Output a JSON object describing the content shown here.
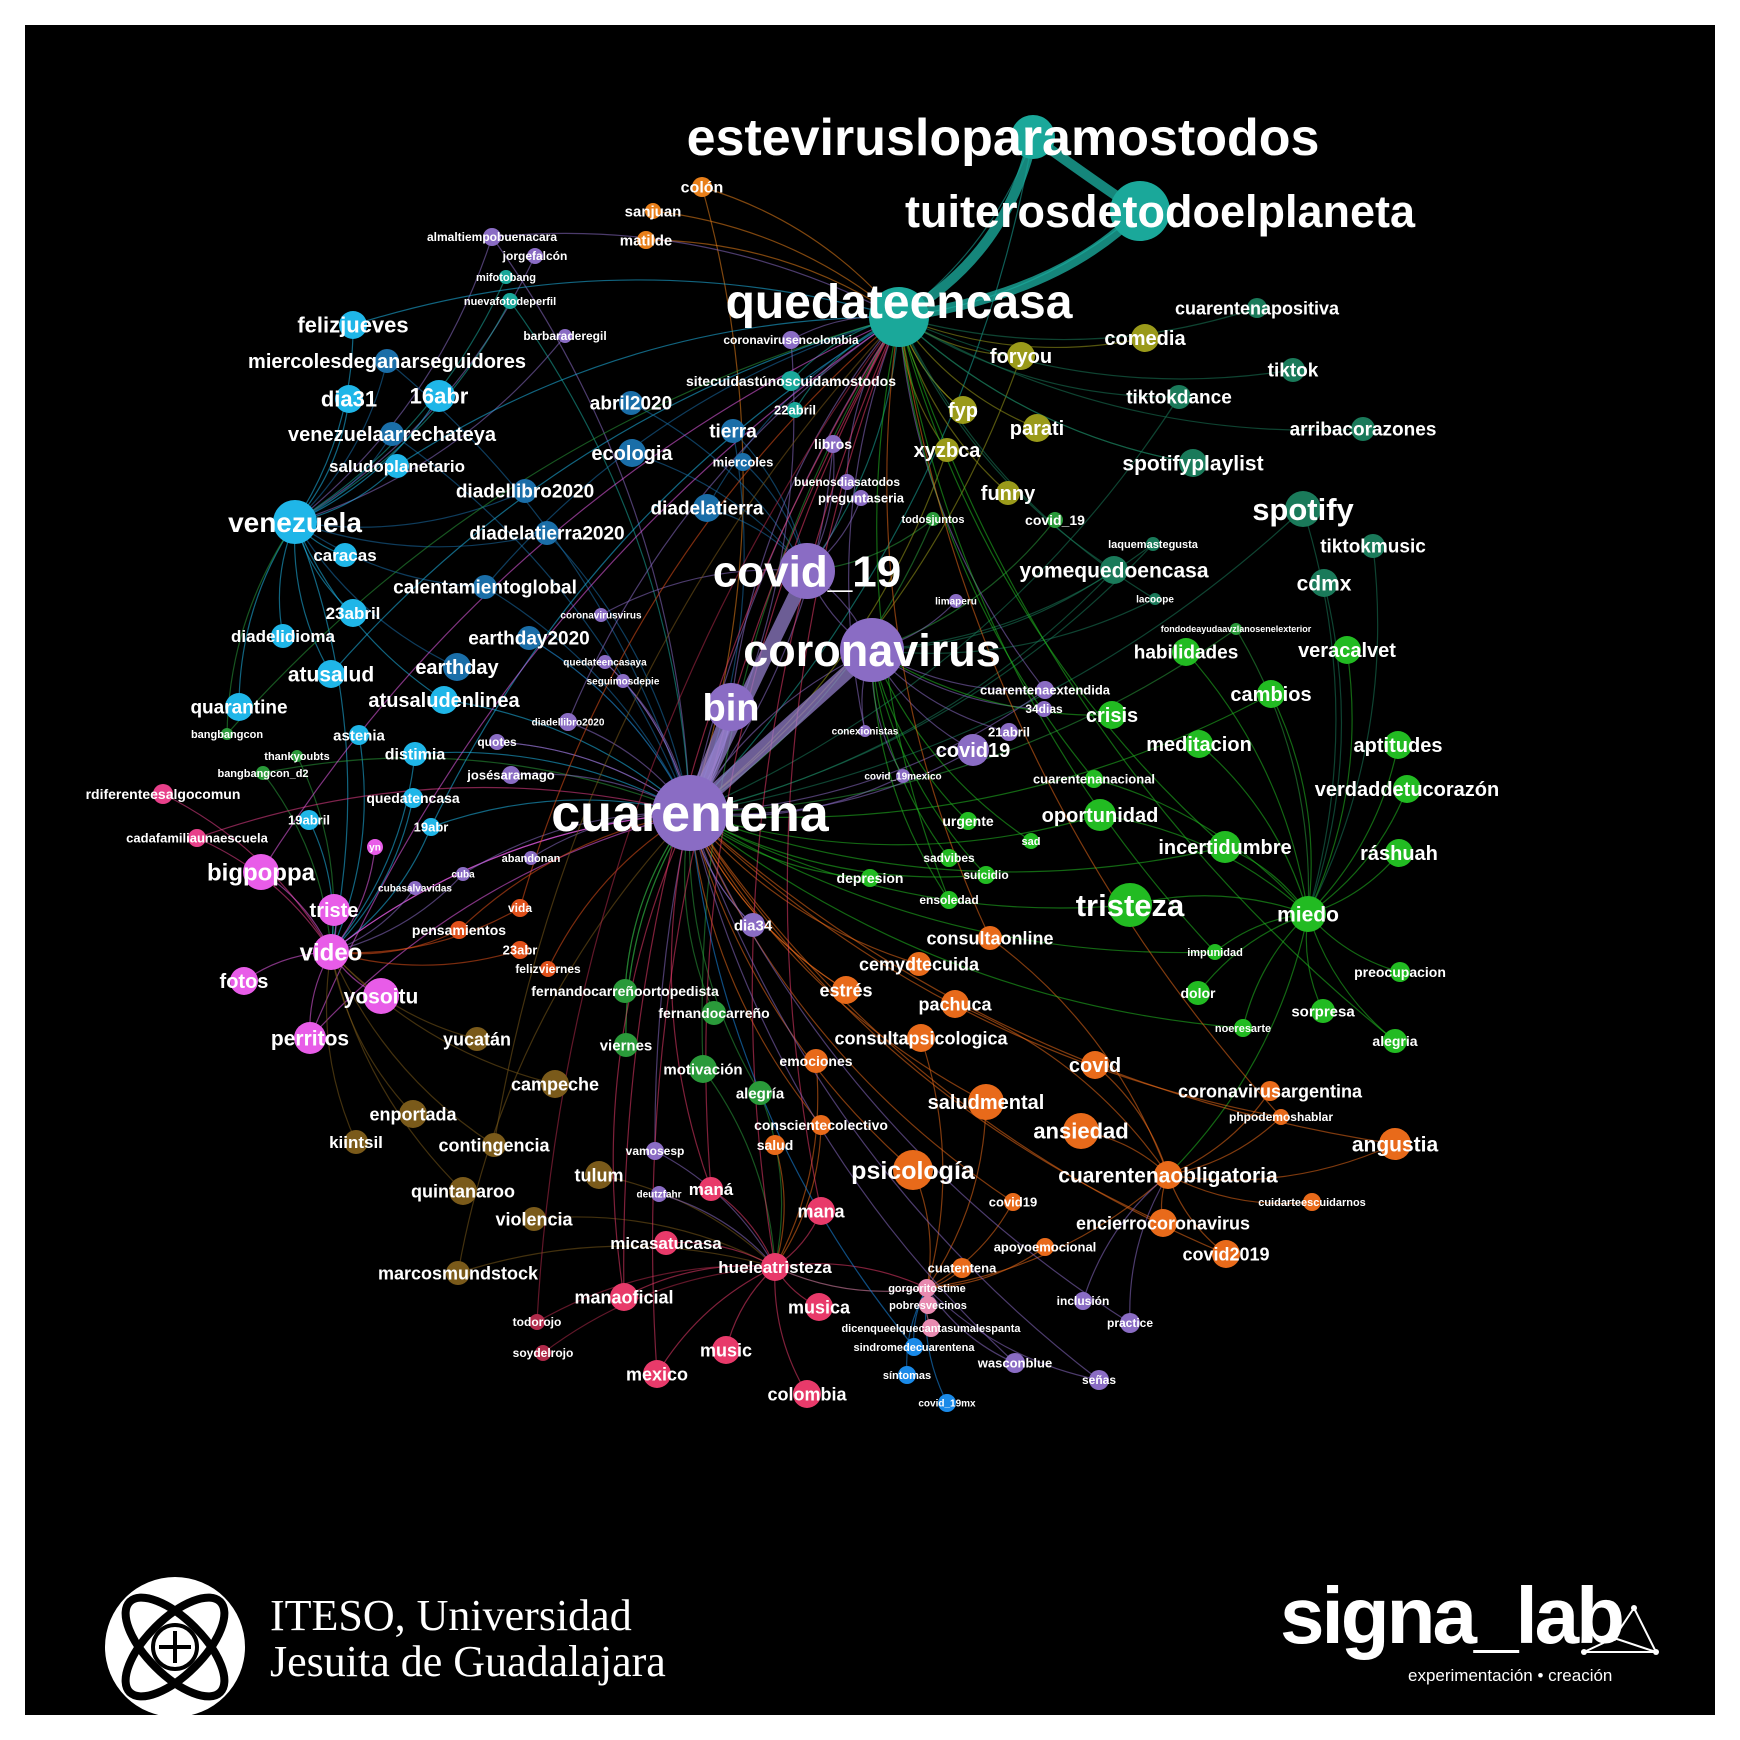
{
  "graph": {
    "nodes": [
      {
        "label": "estevirusloparamostodos",
        "color": "#1aa89a",
        "r": 22
      },
      {
        "label": "tuiterosdetodoelplaneta",
        "color": "#1aa89a",
        "r": 30
      },
      {
        "label": "quedateencasa",
        "color": "#1aa89a",
        "r": 30
      },
      {
        "label": "colón",
        "color": "#e87f1a",
        "r": 10
      },
      {
        "label": "sanjuan",
        "color": "#e87f1a",
        "r": 8
      },
      {
        "label": "matilde",
        "color": "#e87f1a",
        "r": 9
      },
      {
        "label": "almaltiempobuenacara",
        "color": "#8a6cc4",
        "r": 9
      },
      {
        "label": "jorgefalcón",
        "color": "#8a6cc4",
        "r": 8
      },
      {
        "label": "mifotobang",
        "color": "#1aa89a",
        "r": 7
      },
      {
        "label": "nuevafotodeperfil",
        "color": "#1aa89a",
        "r": 8
      },
      {
        "label": "barbaraderegil",
        "color": "#8a6cc4",
        "r": 7
      },
      {
        "label": "felizjueves",
        "color": "#1fb6e8",
        "r": 14
      },
      {
        "label": "miercolesdeganarseguidores",
        "color": "#1a6ea8",
        "r": 12
      },
      {
        "label": "dia31",
        "color": "#1fb6e8",
        "r": 14
      },
      {
        "label": "16abr",
        "color": "#1fb6e8",
        "r": 16
      },
      {
        "label": "venezuelaarrechateya",
        "color": "#1a6ea8",
        "r": 12
      },
      {
        "label": "saludoplanetario",
        "color": "#1fb6e8",
        "r": 12
      },
      {
        "label": "diadellibro2020",
        "color": "#1a6ea8",
        "r": 12
      },
      {
        "label": "diadelatierra2020",
        "color": "#1a6ea8",
        "r": 12
      },
      {
        "label": "venezuela",
        "color": "#1fb6e8",
        "r": 22
      },
      {
        "label": "caracas",
        "color": "#1fb6e8",
        "r": 12
      },
      {
        "label": "calentamientoglobal",
        "color": "#1a6ea8",
        "r": 12
      },
      {
        "label": "23abril",
        "color": "#1fb6e8",
        "r": 14
      },
      {
        "label": "diadelidioma",
        "color": "#1fb6e8",
        "r": 12
      },
      {
        "label": "earthday2020",
        "color": "#1a6ea8",
        "r": 12
      },
      {
        "label": "earthday",
        "color": "#1a6ea8",
        "r": 14
      },
      {
        "label": "atusalud",
        "color": "#1fb6e8",
        "r": 14
      },
      {
        "label": "atusaludenlinea",
        "color": "#1fb6e8",
        "r": 14
      },
      {
        "label": "quarantine",
        "color": "#1fb6e8",
        "r": 14
      },
      {
        "label": "astenia",
        "color": "#1fb6e8",
        "r": 10
      },
      {
        "label": "distimia",
        "color": "#1fb6e8",
        "r": 12
      },
      {
        "label": "bangbangcon",
        "color": "#2a9a3a",
        "r": 6
      },
      {
        "label": "thankyoubts",
        "color": "#2a9a3a",
        "r": 6
      },
      {
        "label": "bangbangcon_d2",
        "color": "#2a9a3a",
        "r": 7
      },
      {
        "label": "quedatencasa",
        "color": "#1fb6e8",
        "r": 10
      },
      {
        "label": "19abril",
        "color": "#1fb6e8",
        "r": 10
      },
      {
        "label": "19abr",
        "color": "#1fb6e8",
        "r": 9
      },
      {
        "label": "abril2020",
        "color": "#1a6ea8",
        "r": 12
      },
      {
        "label": "ecologia",
        "color": "#1a6ea8",
        "r": 14
      },
      {
        "label": "tierra",
        "color": "#1a6ea8",
        "r": 12
      },
      {
        "label": "miercoles",
        "color": "#1a6ea8",
        "r": 9
      },
      {
        "label": "diadelatierra",
        "color": "#1a6ea8",
        "r": 14
      },
      {
        "label": "coronavirusencolombia",
        "color": "#8a6cc4",
        "r": 9
      },
      {
        "label": "sitecuidastúnoscuidamostodos",
        "color": "#1aa89a",
        "r": 10
      },
      {
        "label": "22abril",
        "color": "#1aa89a",
        "r": 8
      },
      {
        "label": "libros",
        "color": "#8a6cc4",
        "r": 9
      },
      {
        "label": "buenosdiasatodos",
        "color": "#8a6cc4",
        "r": 8
      },
      {
        "label": "preguntaseria",
        "color": "#8a6cc4",
        "r": 8
      },
      {
        "label": "todosjuntos",
        "color": "#2a9a3a",
        "r": 7
      },
      {
        "label": "covid_19",
        "color": "#8a6cc4",
        "r": 28
      },
      {
        "label": "coronavirus",
        "color": "#8a6cc4",
        "r": 32
      },
      {
        "label": "bin",
        "color": "#8a6cc4",
        "r": 24
      },
      {
        "label": "cuarentena",
        "color": "#8a6cc4",
        "r": 38
      },
      {
        "label": "coronavirusvirus",
        "color": "#8a6cc4",
        "r": 7
      },
      {
        "label": "quedateencasaya",
        "color": "#8a6cc4",
        "r": 7
      },
      {
        "label": "seguimosdepie",
        "color": "#8a6cc4",
        "r": 7
      },
      {
        "label": "diadellibro2020",
        "color": "#8a6cc4",
        "r": 9
      },
      {
        "label": "quotes",
        "color": "#8a6cc4",
        "r": 8
      },
      {
        "label": "josésaramago",
        "color": "#8a6cc4",
        "r": 9
      },
      {
        "label": "comedia",
        "color": "#9a9a1a",
        "r": 14
      },
      {
        "label": "foryou",
        "color": "#9a9a1a",
        "r": 14
      },
      {
        "label": "fyp",
        "color": "#9a9a1a",
        "r": 14
      },
      {
        "label": "parati",
        "color": "#9a9a1a",
        "r": 14
      },
      {
        "label": "xyzbca",
        "color": "#9a9a1a",
        "r": 12
      },
      {
        "label": "funny",
        "color": "#9a9a1a",
        "r": 12
      },
      {
        "label": "covid_19",
        "color": "#2a9a3a",
        "r": 8
      },
      {
        "label": "yomequedoencasa",
        "color": "#1a7a5a",
        "r": 14
      },
      {
        "label": "cuarentenapositiva",
        "color": "#1a7a5a",
        "r": 10
      },
      {
        "label": "tiktok",
        "color": "#1a7a5a",
        "r": 12
      },
      {
        "label": "tiktokdance",
        "color": "#1a7a5a",
        "r": 12
      },
      {
        "label": "arribacorazones",
        "color": "#1a7a5a",
        "r": 12
      },
      {
        "label": "spotifyplaylist",
        "color": "#1a7a5a",
        "r": 14
      },
      {
        "label": "spotify",
        "color": "#1a7a5a",
        "r": 18
      },
      {
        "label": "tiktokmusic",
        "color": "#1a7a5a",
        "r": 12
      },
      {
        "label": "cdmx",
        "color": "#1a7a5a",
        "r": 14
      },
      {
        "label": "laquemastegusta",
        "color": "#1a7a5a",
        "r": 7
      },
      {
        "label": "lacoope",
        "color": "#1a7a5a",
        "r": 6
      },
      {
        "label": "limaperu",
        "color": "#8a6cc4",
        "r": 7
      },
      {
        "label": "fondodeayudaavzlanosenelexterior",
        "color": "#2a9a3a",
        "r": 6
      },
      {
        "label": "habilidades",
        "color": "#22bb22",
        "r": 14
      },
      {
        "label": "veracalvet",
        "color": "#22bb22",
        "r": 14
      },
      {
        "label": "cuarentenaextendida",
        "color": "#8a6cc4",
        "r": 9
      },
      {
        "label": "34dias",
        "color": "#8a6cc4",
        "r": 8
      },
      {
        "label": "crisis",
        "color": "#22bb22",
        "r": 14
      },
      {
        "label": "cambios",
        "color": "#22bb22",
        "r": 14
      },
      {
        "label": "21abril",
        "color": "#8a6cc4",
        "r": 9
      },
      {
        "label": "conexionistas",
        "color": "#8a6cc4",
        "r": 6
      },
      {
        "label": "covid19",
        "color": "#8a6cc4",
        "r": 16
      },
      {
        "label": "meditacion",
        "color": "#22bb22",
        "r": 14
      },
      {
        "label": "aptitudes",
        "color": "#22bb22",
        "r": 14
      },
      {
        "label": "covid_19mexico",
        "color": "#8a6cc4",
        "r": 7
      },
      {
        "label": "cuarentenanacional",
        "color": "#22bb22",
        "r": 9
      },
      {
        "label": "verdaddetucorazón",
        "color": "#22bb22",
        "r": 14
      },
      {
        "label": "oportunidad",
        "color": "#22bb22",
        "r": 16
      },
      {
        "label": "urgente",
        "color": "#22bb22",
        "r": 9
      },
      {
        "label": "sad",
        "color": "#22bb22",
        "r": 8
      },
      {
        "label": "incertidumbre",
        "color": "#22bb22",
        "r": 16
      },
      {
        "label": "ráshuah",
        "color": "#22bb22",
        "r": 14
      },
      {
        "label": "sadvibes",
        "color": "#22bb22",
        "r": 9
      },
      {
        "label": "suicidio",
        "color": "#22bb22",
        "r": 9
      },
      {
        "label": "depresion",
        "color": "#22bb22",
        "r": 9
      },
      {
        "label": "ensoledad",
        "color": "#22bb22",
        "r": 9
      },
      {
        "label": "tristeza",
        "color": "#22bb22",
        "r": 22
      },
      {
        "label": "miedo",
        "color": "#22bb22",
        "r": 18
      },
      {
        "label": "rdiferenteesalgocomun",
        "color": "#e8408a",
        "r": 10
      },
      {
        "label": "cadafamiliaunaescuela",
        "color": "#e8408a",
        "r": 9
      },
      {
        "label": "bigpoppa",
        "color": "#e85ce8",
        "r": 18
      },
      {
        "label": "triste",
        "color": "#e85ce8",
        "r": 16
      },
      {
        "label": "video",
        "color": "#e85ce8",
        "r": 18
      },
      {
        "label": "fotos",
        "color": "#e85ce8",
        "r": 14
      },
      {
        "label": "yosoitu",
        "color": "#e85ce8",
        "r": 18
      },
      {
        "label": "perritos",
        "color": "#e85ce8",
        "r": 16
      },
      {
        "label": "yn",
        "color": "#e85ce8",
        "r": 8
      },
      {
        "label": "abandonan",
        "color": "#8a6cc4",
        "r": 7
      },
      {
        "label": "cuba",
        "color": "#8a6cc4",
        "r": 7
      },
      {
        "label": "cubasalvavidas",
        "color": "#8a6cc4",
        "r": 7
      },
      {
        "label": "vida",
        "color": "#e0501a",
        "r": 9
      },
      {
        "label": "pensamientos",
        "color": "#e0501a",
        "r": 9
      },
      {
        "label": "23abr",
        "color": "#e0501a",
        "r": 9
      },
      {
        "label": "felizviernes",
        "color": "#e0501a",
        "r": 8
      },
      {
        "label": "dia34",
        "color": "#8a6cc4",
        "r": 12
      },
      {
        "label": "consultaonline",
        "color": "#e86a1a",
        "r": 12
      },
      {
        "label": "cemydtecuida",
        "color": "#e86a1a",
        "r": 12
      },
      {
        "label": "estrés",
        "color": "#e86a1a",
        "r": 14
      },
      {
        "label": "pachuca",
        "color": "#e86a1a",
        "r": 14
      },
      {
        "label": "consultapsicologica",
        "color": "#e86a1a",
        "r": 14
      },
      {
        "label": "impunidad",
        "color": "#22bb22",
        "r": 8
      },
      {
        "label": "preocupacion",
        "color": "#22bb22",
        "r": 10
      },
      {
        "label": "dolor",
        "color": "#22bb22",
        "r": 12
      },
      {
        "label": "noeresarte",
        "color": "#22bb22",
        "r": 9
      },
      {
        "label": "sorpresa",
        "color": "#22bb22",
        "r": 12
      },
      {
        "label": "alegria",
        "color": "#22bb22",
        "r": 12
      },
      {
        "label": "fernandocarreñoortopedista",
        "color": "#2a9a3a",
        "r": 12
      },
      {
        "label": "fernandocarreño",
        "color": "#2a9a3a",
        "r": 12
      },
      {
        "label": "yucatán",
        "color": "#7a5a1a",
        "r": 12
      },
      {
        "label": "viernes",
        "color": "#2a9a3a",
        "r": 12
      },
      {
        "label": "motivación",
        "color": "#2a9a3a",
        "r": 14
      },
      {
        "label": "emociones",
        "color": "#e86a1a",
        "r": 12
      },
      {
        "label": "alegría",
        "color": "#2a9a3a",
        "r": 12
      },
      {
        "label": "covid",
        "color": "#e86a1a",
        "r": 14
      },
      {
        "label": "coronavirusargentina",
        "color": "#e86a1a",
        "r": 10
      },
      {
        "label": "phpodemoshablar",
        "color": "#e86a1a",
        "r": 8
      },
      {
        "label": "campeche",
        "color": "#7a5a1a",
        "r": 14
      },
      {
        "label": "enportada",
        "color": "#7a5a1a",
        "r": 14
      },
      {
        "label": "saludmental",
        "color": "#e86a1a",
        "r": 18
      },
      {
        "label": "kiintsil",
        "color": "#7a5a1a",
        "r": 12
      },
      {
        "label": "contingencia",
        "color": "#7a5a1a",
        "r": 12
      },
      {
        "label": "conscientecolectivo",
        "color": "#e86a1a",
        "r": 10
      },
      {
        "label": "ansiedad",
        "color": "#e86a1a",
        "r": 18
      },
      {
        "label": "salud",
        "color": "#e86a1a",
        "r": 10
      },
      {
        "label": "angustia",
        "color": "#e86a1a",
        "r": 16
      },
      {
        "label": "vamosesp",
        "color": "#8a6cc4",
        "r": 9
      },
      {
        "label": "tulum",
        "color": "#7a5a1a",
        "r": 14
      },
      {
        "label": "psicología",
        "color": "#e86a1a",
        "r": 20
      },
      {
        "label": "quintanaroo",
        "color": "#7a5a1a",
        "r": 14
      },
      {
        "label": "deutzfahr",
        "color": "#8a6cc4",
        "r": 8
      },
      {
        "label": "maná",
        "color": "#e83a6a",
        "r": 12
      },
      {
        "label": "cuarentenaobligatoria",
        "color": "#e86a1a",
        "r": 14
      },
      {
        "label": "cuidarteescuidarnos",
        "color": "#e86a1a",
        "r": 9
      },
      {
        "label": "covid19",
        "color": "#e86a1a",
        "r": 9
      },
      {
        "label": "violencia",
        "color": "#7a5a1a",
        "r": 12
      },
      {
        "label": "mana",
        "color": "#e83a6a",
        "r": 14
      },
      {
        "label": "encierrocoronavirus",
        "color": "#e86a1a",
        "r": 14
      },
      {
        "label": "micasatucasa",
        "color": "#e83a6a",
        "r": 12
      },
      {
        "label": "apoyoemocional",
        "color": "#e86a1a",
        "r": 9
      },
      {
        "label": "covid2019",
        "color": "#e86a1a",
        "r": 14
      },
      {
        "label": "hueleatristeza",
        "color": "#e83a6a",
        "r": 14
      },
      {
        "label": "cuatentena",
        "color": "#e86a1a",
        "r": 10
      },
      {
        "label": "marcosmundstock",
        "color": "#7a5a1a",
        "r": 12
      },
      {
        "label": "gorgoritostime",
        "color": "#e88ab0",
        "r": 9
      },
      {
        "label": "inclusión",
        "color": "#8a6cc4",
        "r": 9
      },
      {
        "label": "manaoficial",
        "color": "#e83a6a",
        "r": 14
      },
      {
        "label": "musica",
        "color": "#e83a6a",
        "r": 14
      },
      {
        "label": "pobresvecinos",
        "color": "#e88ab0",
        "r": 9
      },
      {
        "label": "practice",
        "color": "#8a6cc4",
        "r": 10
      },
      {
        "label": "dicenqueelquecantasumalespanta",
        "color": "#e88ab0",
        "r": 9
      },
      {
        "label": "todorojo",
        "color": "#b02a4a",
        "r": 8
      },
      {
        "label": "sindromedecuarentena",
        "color": "#1a8ae8",
        "r": 9
      },
      {
        "label": "music",
        "color": "#e83a6a",
        "r": 14
      },
      {
        "label": "soydelrojo",
        "color": "#b02a4a",
        "r": 8
      },
      {
        "label": "wasconblue",
        "color": "#8a6cc4",
        "r": 10
      },
      {
        "label": "mexico",
        "color": "#e83a6a",
        "r": 14
      },
      {
        "label": "síntomas",
        "color": "#1a8ae8",
        "r": 9
      },
      {
        "label": "señas",
        "color": "#8a6cc4",
        "r": 10
      },
      {
        "label": "colombia",
        "color": "#e83a6a",
        "r": 14
      },
      {
        "label": "covid_19mx",
        "color": "#1a8ae8",
        "r": 9
      }
    ]
  },
  "footer": {
    "iteso_line1": "ITESO, Universidad",
    "iteso_line2": "Jesuita de Guadalajara",
    "signa_name": "signa_lab",
    "signa_tagline": "experimentación • creación"
  }
}
